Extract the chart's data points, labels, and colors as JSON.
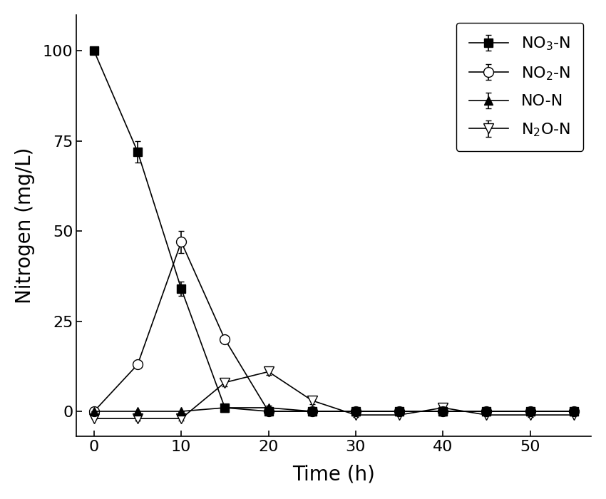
{
  "time": [
    0,
    5,
    10,
    15,
    20,
    25,
    30,
    35,
    40,
    45,
    50,
    55
  ],
  "NO3N": [
    100,
    72,
    34,
    1,
    0,
    0,
    0,
    0,
    0,
    0,
    0,
    0
  ],
  "NO3N_err": [
    0,
    3,
    2,
    0.5,
    0,
    0,
    0,
    0,
    0,
    0,
    0,
    0
  ],
  "NO2N": [
    0,
    13,
    47,
    20,
    0,
    0,
    0,
    0,
    0,
    0,
    0,
    0
  ],
  "NO2N_err": [
    0,
    0,
    3,
    0,
    0,
    0,
    0,
    0,
    0,
    0,
    0,
    0
  ],
  "NON": [
    0,
    0,
    0,
    1,
    1,
    0,
    0,
    0,
    0,
    0,
    0,
    0
  ],
  "NON_err": [
    0,
    0,
    0,
    0.5,
    0.5,
    0.3,
    0,
    0,
    0,
    0,
    0,
    0
  ],
  "N2ON": [
    -2,
    -2,
    -2,
    8,
    11,
    3,
    -1,
    -1,
    1,
    -1,
    -1,
    -1
  ],
  "N2ON_err": [
    0,
    0.5,
    0.5,
    1,
    1,
    1,
    0.5,
    0,
    0.5,
    0,
    0.5,
    0
  ],
  "ylim": [
    -7,
    110
  ],
  "xlim": [
    -2,
    57
  ],
  "xticks": [
    0,
    10,
    20,
    30,
    40,
    50
  ],
  "yticks": [
    0,
    25,
    50,
    75,
    100
  ],
  "xlabel": "Time (h)",
  "ylabel": "Nitrogen (mg/L)",
  "legend_labels": [
    "NO$_3$-N",
    "NO$_2$-N",
    "NO-N",
    "N$_2$O-N"
  ],
  "color": "#000000",
  "bg_color": "#ffffff",
  "markersize": 9,
  "linewidth": 1.2,
  "capsize": 3,
  "tick_labelsize": 16,
  "axis_labelsize": 20,
  "legend_fontsize": 16
}
